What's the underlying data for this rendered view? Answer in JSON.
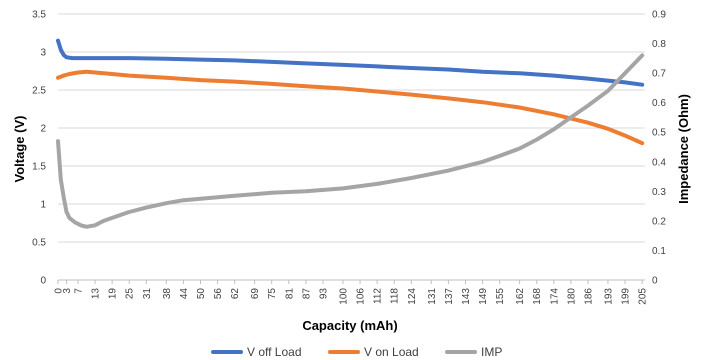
{
  "chart_data": {
    "type": "line",
    "xlabel": "Capacity (mAh)",
    "ylabel_left": "Voltage (V)",
    "ylabel_right": "Impedance (Ohm)",
    "ylim_left": [
      0,
      3.5
    ],
    "ylim_right": [
      0,
      0.9
    ],
    "yticks_left": [
      0,
      0.5,
      1,
      1.5,
      2,
      2.5,
      3,
      3.5
    ],
    "yticks_left_labels": [
      "0",
      "0.5",
      "1",
      "1.5",
      "2",
      "2.5",
      "3",
      "3.5"
    ],
    "yticks_right": [
      0,
      0.1,
      0.2,
      0.3,
      0.4,
      0.5,
      0.6,
      0.7,
      0.8,
      0.9
    ],
    "yticks_right_labels": [
      "0",
      "0.1",
      "0.2",
      "0.3",
      "0.4",
      "0.5",
      "0.6",
      "0.7",
      "0.8",
      "0.9"
    ],
    "xticks": [
      0,
      3,
      7,
      13,
      19,
      25,
      31,
      38,
      44,
      50,
      56,
      62,
      69,
      75,
      81,
      87,
      93,
      100,
      106,
      112,
      118,
      124,
      131,
      137,
      143,
      149,
      155,
      162,
      168,
      174,
      180,
      186,
      193,
      199,
      205
    ],
    "xticks_labels": [
      "0",
      "3",
      "7",
      "13",
      "19",
      "25",
      "31",
      "38",
      "44",
      "50",
      "56",
      "62",
      "69",
      "75",
      "81",
      "87",
      "93",
      "100",
      "106",
      "112",
      "118",
      "124",
      "131",
      "137",
      "143",
      "149",
      "155",
      "162",
      "168",
      "174",
      "180",
      "186",
      "193",
      "199",
      "205"
    ],
    "grid": "horizontal",
    "legend_position": "bottom",
    "series": [
      {
        "name": "V off Load",
        "axis": "left",
        "color": "#4472C4",
        "x": [
          0,
          1,
          2,
          3,
          5,
          7,
          13,
          25,
          38,
          50,
          62,
          75,
          87,
          100,
          112,
          124,
          137,
          149,
          162,
          174,
          186,
          199,
          205
        ],
        "y": [
          3.15,
          3.03,
          2.96,
          2.93,
          2.92,
          2.92,
          2.92,
          2.92,
          2.91,
          2.9,
          2.89,
          2.87,
          2.85,
          2.83,
          2.81,
          2.79,
          2.77,
          2.74,
          2.72,
          2.69,
          2.65,
          2.6,
          2.57
        ]
      },
      {
        "name": "V on Load",
        "axis": "left",
        "color": "#ED7D31",
        "x": [
          0,
          2,
          4,
          7,
          10,
          13,
          19,
          25,
          38,
          50,
          62,
          75,
          87,
          100,
          112,
          124,
          137,
          149,
          162,
          174,
          186,
          193,
          199,
          205
        ],
        "y": [
          2.66,
          2.69,
          2.71,
          2.73,
          2.74,
          2.73,
          2.71,
          2.69,
          2.66,
          2.63,
          2.61,
          2.58,
          2.55,
          2.52,
          2.48,
          2.44,
          2.39,
          2.34,
          2.27,
          2.18,
          2.07,
          1.99,
          1.9,
          1.8
        ]
      },
      {
        "name": "IMP",
        "axis": "right",
        "color": "#A5A5A5",
        "x": [
          0,
          1,
          2,
          3,
          4,
          6,
          8,
          10,
          13,
          16,
          19,
          25,
          31,
          38,
          44,
          50,
          62,
          75,
          87,
          100,
          112,
          124,
          137,
          149,
          155,
          162,
          168,
          174,
          180,
          186,
          193,
          199,
          205
        ],
        "y": [
          0.47,
          0.34,
          0.28,
          0.23,
          0.21,
          0.195,
          0.185,
          0.18,
          0.185,
          0.2,
          0.21,
          0.23,
          0.245,
          0.26,
          0.27,
          0.275,
          0.285,
          0.295,
          0.3,
          0.31,
          0.325,
          0.345,
          0.37,
          0.4,
          0.42,
          0.445,
          0.475,
          0.51,
          0.55,
          0.59,
          0.64,
          0.7,
          0.76
        ]
      }
    ]
  }
}
